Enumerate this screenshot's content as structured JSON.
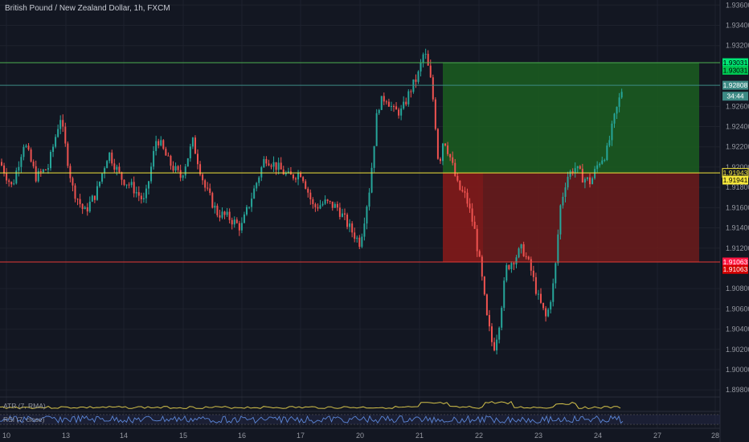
{
  "header": {
    "title": "British Pound / New Zealand Dollar, 1h, FXCM"
  },
  "colors": {
    "background": "#131722",
    "grid": "#1e222d",
    "up": "#26a69a",
    "down": "#ef5350",
    "target_line": "#4caf50",
    "entry_line": "#f5e63b",
    "stop_line": "#e53935",
    "current_line": "#3d8a85",
    "profit_zone": "#1b5e20",
    "loss_zone": "#6d1b1b",
    "atr": "#d4c24a",
    "rsi": "#5b86d6"
  },
  "chart_data": {
    "type": "candlestick",
    "symbol": "British Pound / New Zealand Dollar, 1h, FXCM",
    "y_axis_ticks": [
      "1.93600",
      "1.93400",
      "1.93200",
      "1.92600",
      "1.92400",
      "1.92200",
      "1.92000",
      "1.91800",
      "1.91600",
      "1.91400",
      "1.91200",
      "1.90800",
      "1.90600",
      "1.90400",
      "1.90200",
      "1.90000",
      "1.89800"
    ],
    "ylim": [
      1.8973,
      1.9365
    ],
    "x_axis_ticks": [
      "10",
      "13",
      "14",
      "15",
      "16",
      "17",
      "20",
      "21",
      "22",
      "23",
      "24",
      "27",
      "28"
    ],
    "price_tags": [
      {
        "label": "1.93031",
        "value": 1.93031,
        "color": "#00e676",
        "text_color": "#000000"
      },
      {
        "label": "1.93031",
        "value": 1.92956,
        "color": "#00c853",
        "text_color": "#000000"
      },
      {
        "label": "1.92808",
        "value": 1.92808,
        "color": "#3d8a85",
        "text_color": "#ffffff"
      },
      {
        "label": "34:44",
        "value": 1.927,
        "color": "#3d8a85",
        "text_color": "#ffffff"
      },
      {
        "label": "1.91943",
        "value": 1.91943,
        "color": "#131722",
        "text_color": "#f5e63b",
        "border": "#f5e63b"
      },
      {
        "label": "1.91941",
        "value": 1.91872,
        "color": "#f5e63b",
        "text_color": "#000000"
      },
      {
        "label": "1.91063",
        "value": 1.91063,
        "color": "#ff1744",
        "text_color": "#ffffff"
      },
      {
        "label": "1.91063",
        "value": 1.9099,
        "color": "#d50000",
        "text_color": "#ffffff"
      }
    ],
    "levels": {
      "target": 1.93031,
      "current": 1.92808,
      "entry": 1.91943,
      "stop": 1.91063
    },
    "path": [
      [
        0,
        1.9205
      ],
      [
        15,
        1.918
      ],
      [
        30,
        1.9225
      ],
      [
        45,
        1.919
      ],
      [
        60,
        1.92
      ],
      [
        75,
        1.925
      ],
      [
        90,
        1.918
      ],
      [
        105,
        1.9155
      ],
      [
        120,
        1.9175
      ],
      [
        135,
        1.9215
      ],
      [
        150,
        1.919
      ],
      [
        165,
        1.918
      ],
      [
        180,
        1.9165
      ],
      [
        195,
        1.923
      ],
      [
        210,
        1.9205
      ],
      [
        225,
        1.919
      ],
      [
        240,
        1.9225
      ],
      [
        255,
        1.918
      ],
      [
        270,
        1.9155
      ],
      [
        285,
        1.915
      ],
      [
        300,
        1.914
      ],
      [
        315,
        1.9175
      ],
      [
        330,
        1.921
      ],
      [
        345,
        1.92
      ],
      [
        360,
        1.919
      ],
      [
        375,
        1.9195
      ],
      [
        390,
        1.916
      ],
      [
        405,
        1.9165
      ],
      [
        420,
        1.916
      ],
      [
        435,
        1.914
      ],
      [
        448,
        1.9125
      ],
      [
        460,
        1.918
      ],
      [
        470,
        1.926
      ],
      [
        480,
        1.927
      ],
      [
        490,
        1.9255
      ],
      [
        500,
        1.9255
      ],
      [
        510,
        1.9275
      ],
      [
        520,
        1.929
      ],
      [
        528,
        1.9315
      ],
      [
        535,
        1.929
      ],
      [
        540,
        1.926
      ],
      [
        546,
        1.92
      ],
      [
        552,
        1.923
      ],
      [
        560,
        1.921
      ],
      [
        570,
        1.918
      ],
      [
        580,
        1.917
      ],
      [
        590,
        1.914
      ],
      [
        598,
        1.91
      ],
      [
        606,
        1.905
      ],
      [
        614,
        1.902
      ],
      [
        620,
        1.904
      ],
      [
        630,
        1.91
      ],
      [
        640,
        1.911
      ],
      [
        650,
        1.912
      ],
      [
        660,
        1.91
      ],
      [
        670,
        1.907
      ],
      [
        680,
        1.905
      ],
      [
        690,
        1.909
      ],
      [
        697,
        1.916
      ],
      [
        705,
        1.919
      ],
      [
        715,
        1.92
      ],
      [
        725,
        1.919
      ],
      [
        735,
        1.9185
      ],
      [
        745,
        1.9205
      ],
      [
        755,
        1.9215
      ],
      [
        765,
        1.925
      ],
      [
        775,
        1.928
      ]
    ],
    "zones": {
      "profit": {
        "x_start_day": "21",
        "top": 1.93031,
        "bottom": 1.91943
      },
      "loss": {
        "x_start_day": "21",
        "top": 1.91943,
        "bottom": 1.91063
      }
    },
    "indicators": [
      {
        "name": "ATR (7, RMA)"
      },
      {
        "name": "RSI (7, close)"
      }
    ]
  }
}
